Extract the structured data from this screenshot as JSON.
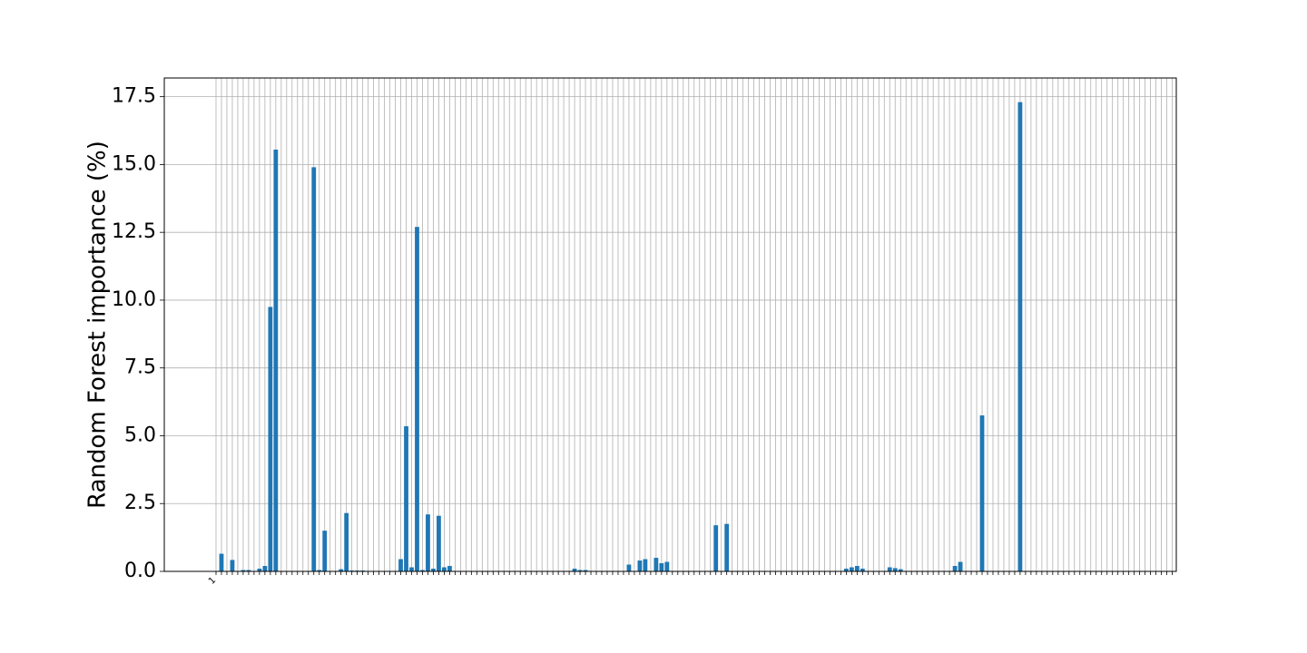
{
  "chart_data": {
    "type": "bar",
    "y_label": "Random Forest importance (%)",
    "color": "#1f77b4",
    "grid": true,
    "ylim": [
      0,
      18.19
    ],
    "yticks": [
      {
        "value": 0,
        "label": "0.0"
      },
      2.5,
      {
        "value": 5,
        "label": "5.0"
      },
      7.5,
      {
        "value": 10,
        "label": "10.0"
      },
      12.5,
      {
        "value": 15,
        "label": "15.0"
      },
      17.5
    ],
    "categories": [
      "1",
      null,
      null,
      null,
      null,
      null,
      null,
      null,
      null,
      null,
      null,
      null,
      null,
      null,
      null,
      null,
      null,
      null,
      null,
      null,
      null,
      null,
      null,
      null,
      null,
      null,
      null,
      null,
      null,
      null,
      null,
      null,
      null,
      null,
      null,
      null,
      null,
      null,
      null,
      null,
      null,
      null,
      null,
      null,
      null,
      null,
      null,
      null,
      null,
      null,
      null,
      null,
      null,
      null,
      null,
      null,
      null,
      null,
      null,
      null,
      null,
      null,
      null,
      null,
      null,
      null,
      null,
      null,
      null,
      null,
      null,
      null,
      null,
      null,
      null,
      null,
      null,
      null,
      null,
      null,
      null,
      null,
      null,
      null,
      null,
      null,
      null,
      null,
      null,
      null,
      null,
      null,
      null,
      null,
      null,
      null,
      null,
      null,
      null,
      null,
      null,
      null,
      null,
      null,
      null,
      null,
      null,
      null,
      null,
      null,
      null,
      null,
      null,
      null,
      null,
      null,
      null,
      null,
      null,
      null,
      null,
      null,
      null,
      null,
      null,
      null,
      null,
      null,
      null,
      null,
      null,
      null,
      null,
      null,
      null,
      null,
      null,
      null,
      null,
      null,
      null,
      null,
      null,
      null,
      null,
      null,
      null,
      null,
      null,
      null,
      null,
      null,
      null,
      null,
      null,
      null,
      null,
      null,
      null,
      null,
      null,
      null,
      null,
      null,
      null,
      null,
      null,
      null,
      null,
      null,
      null,
      null,
      null,
      null,
      null,
      null,
      null
    ],
    "values": [
      0,
      0.65,
      0,
      0.42,
      0,
      0.05,
      0.05,
      0,
      0.1,
      0.2,
      9.75,
      15.55,
      0,
      0,
      0,
      0,
      0,
      0,
      14.9,
      0.05,
      1.5,
      0,
      0,
      0.08,
      2.15,
      0.03,
      0.03,
      0.03,
      0,
      0,
      0,
      0,
      0,
      0,
      0.45,
      5.35,
      0.15,
      12.7,
      0.05,
      2.1,
      0.1,
      2.05,
      0.15,
      0.2,
      0,
      0,
      0,
      0,
      0,
      0,
      0,
      0,
      0,
      0,
      0,
      0,
      0,
      0,
      0,
      0,
      0,
      0,
      0,
      0,
      0,
      0,
      0.1,
      0.05,
      0.05,
      0,
      0,
      0,
      0,
      0,
      0,
      0,
      0.25,
      0,
      0.4,
      0.45,
      0,
      0.5,
      0.3,
      0.35,
      0,
      0,
      0,
      0,
      0,
      0,
      0,
      0,
      1.7,
      0,
      1.75,
      0,
      0,
      0,
      0,
      0,
      0,
      0,
      0,
      0,
      0,
      0,
      0,
      0,
      0,
      0,
      0,
      0,
      0,
      0,
      0,
      0,
      0.1,
      0.15,
      0.2,
      0.1,
      0,
      0,
      0,
      0,
      0.15,
      0.12,
      0.08,
      0,
      0,
      0,
      0,
      0,
      0,
      0,
      0,
      0,
      0.2,
      0.35,
      0,
      0,
      0,
      5.75,
      0,
      0,
      0,
      0,
      0,
      0,
      17.3,
      0,
      0,
      0,
      0,
      0,
      0,
      0,
      0,
      0,
      0,
      0,
      0,
      0,
      0,
      0,
      0,
      0,
      0,
      0,
      0,
      0,
      0,
      0,
      0,
      0,
      0,
      0,
      0
    ]
  }
}
